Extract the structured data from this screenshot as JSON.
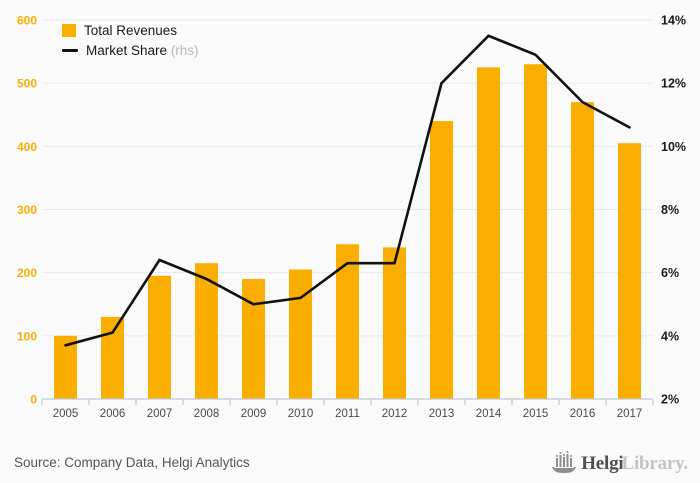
{
  "legend": {
    "series1_label": "Total Revenues",
    "series2_label": "Market Share",
    "series2_suffix": "(rhs)"
  },
  "footer": {
    "source": "Source: Company Data, Helgi Analytics",
    "logo_bold": "Helgi",
    "logo_light": "Library."
  },
  "colors": {
    "bar": "#faaf00",
    "line": "#111111",
    "left_axis_label": "#faaf00",
    "right_axis_label": "#1a1a1a",
    "grid": "#e9e9e9",
    "axis": "#bfc6d6",
    "year_label": "#4a4a4a",
    "background": "#fafafa"
  },
  "chart_data": {
    "type": "bar",
    "title": "",
    "categories": [
      "2005",
      "2006",
      "2007",
      "2008",
      "2009",
      "2010",
      "2011",
      "2012",
      "2013",
      "2014",
      "2015",
      "2016",
      "2017"
    ],
    "series": [
      {
        "name": "Total Revenues",
        "type": "bar",
        "axis": "left",
        "values": [
          100,
          130,
          195,
          215,
          190,
          205,
          245,
          240,
          440,
          525,
          530,
          470,
          405
        ]
      },
      {
        "name": "Market Share",
        "type": "line",
        "axis": "right",
        "values": [
          3.7,
          4.1,
          6.4,
          5.8,
          5.0,
          5.2,
          6.3,
          6.3,
          12.0,
          13.5,
          12.9,
          11.4,
          10.6
        ]
      }
    ],
    "left_axis": {
      "min": 0,
      "max": 600,
      "step": 100,
      "ticks": [
        "0",
        "100",
        "200",
        "300",
        "400",
        "500",
        "600"
      ]
    },
    "right_axis": {
      "min": 2,
      "max": 14,
      "step": 2,
      "ticks": [
        "2%",
        "4%",
        "6%",
        "8%",
        "10%",
        "12%",
        "14%"
      ]
    },
    "grid": true,
    "legend_position": "top-left"
  }
}
